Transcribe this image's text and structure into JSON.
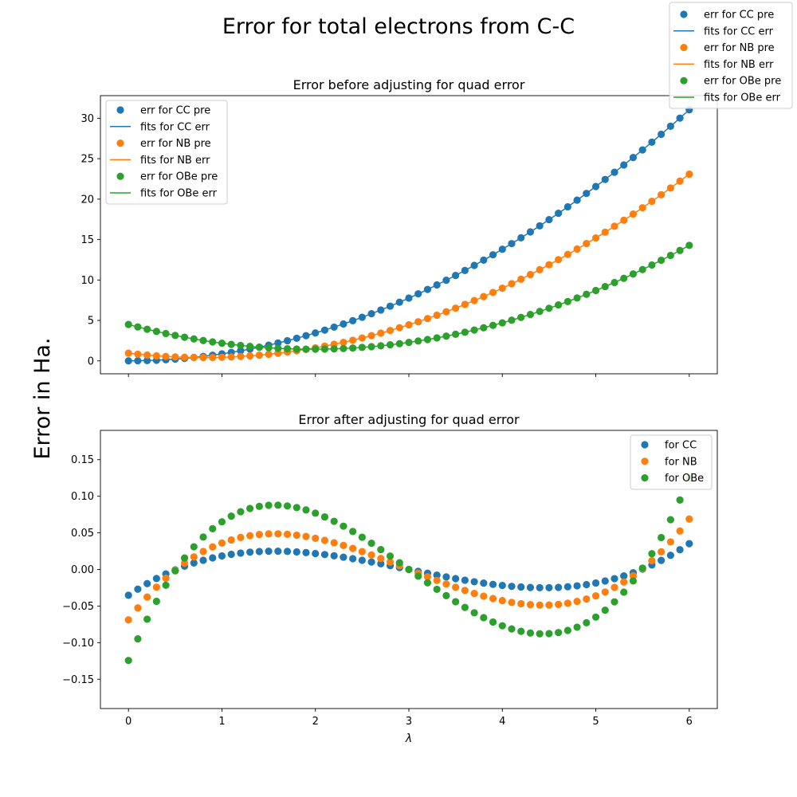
{
  "suptitle": "Error for total electrons from C-C",
  "ylabel_shared": "Error in Ha.",
  "colors": {
    "CC": "#1f77b4",
    "NB": "#ff7f0e",
    "OBe": "#2ca02c"
  },
  "figure_legend": [
    {
      "label": "err for CC pre",
      "kind": "marker",
      "color": "#1f77b4"
    },
    {
      "label": "fits for CC err",
      "kind": "line",
      "color": "#1f77b4"
    },
    {
      "label": "err for NB pre",
      "kind": "marker",
      "color": "#ff7f0e"
    },
    {
      "label": "fits for NB err",
      "kind": "line",
      "color": "#ff7f0e"
    },
    {
      "label": "err for OBe pre",
      "kind": "marker",
      "color": "#2ca02c"
    },
    {
      "label": "fits for OBe err",
      "kind": "line",
      "color": "#2ca02c"
    }
  ],
  "chart_data": [
    {
      "type": "scatter",
      "title": "Error before adjusting for quad error",
      "xlabel": "",
      "ylabel": "",
      "xlim": [
        -0.3,
        6.3
      ],
      "ylim": [
        -1.6,
        32.8
      ],
      "xticks": [
        0,
        1,
        2,
        3,
        4,
        5,
        6
      ],
      "yticks": [
        0,
        5,
        10,
        15,
        20,
        25,
        30
      ],
      "show_x_ticklabels": false,
      "x_start": 0,
      "x_step": 0.1,
      "n_points": 61,
      "legend": [
        {
          "label": "err for CC pre",
          "kind": "marker",
          "color": "#1f77b4"
        },
        {
          "label": "fits for CC err",
          "kind": "line",
          "color": "#1f77b4"
        },
        {
          "label": "err for NB pre",
          "kind": "marker",
          "color": "#ff7f0e"
        },
        {
          "label": "fits for NB err",
          "kind": "line",
          "color": "#ff7f0e"
        },
        {
          "label": "err for OBe pre",
          "kind": "marker",
          "color": "#2ca02c"
        },
        {
          "label": "fits for OBe err",
          "kind": "line",
          "color": "#2ca02c"
        }
      ],
      "series": [
        {
          "name": "CC",
          "color": "#1f77b4",
          "model": "quadratic",
          "a": 0.8625,
          "b": 0,
          "c": 0
        },
        {
          "name": "NB",
          "color": "#ff7f0e",
          "model": "quadratic",
          "a": 0.84,
          "b": -1.35,
          "c": 0.95
        },
        {
          "name": "OBe",
          "color": "#2ca02c",
          "model": "quadratic",
          "a": 0.79,
          "b": -3.11,
          "c": 4.5
        }
      ]
    },
    {
      "type": "scatter",
      "title": "Error after adjusting for quad error",
      "xlabel": "λ",
      "ylabel": "",
      "xlim": [
        -0.3,
        6.3
      ],
      "ylim": [
        -0.19,
        0.19
      ],
      "xticks": [
        0,
        1,
        2,
        3,
        4,
        5,
        6
      ],
      "yticks": [
        -0.15,
        -0.1,
        -0.05,
        0.0,
        0.05,
        0.1,
        0.15
      ],
      "ytick_labels": [
        "−0.15",
        "−0.10",
        "−0.05",
        "0.00",
        "0.05",
        "0.10",
        "0.15"
      ],
      "show_x_ticklabels": true,
      "x_start": 0,
      "x_step": 0.1,
      "n_points": 61,
      "legend": [
        {
          "label": "for CC",
          "kind": "marker",
          "color": "#1f77b4"
        },
        {
          "label": "for NB",
          "kind": "marker",
          "color": "#ff7f0e"
        },
        {
          "label": "for OBe",
          "kind": "marker",
          "color": "#2ca02c"
        }
      ],
      "series": [
        {
          "name": "for CC",
          "color": "#1f77b4",
          "model": "cubic_residual",
          "scale": 0.0042,
          "offset": 0.0
        },
        {
          "name": "for NB",
          "color": "#ff7f0e",
          "model": "cubic_residual",
          "scale": 0.0082,
          "offset": 0.0
        },
        {
          "name": "for OBe",
          "color": "#2ca02c",
          "model": "cubic_residual",
          "scale": 0.0148,
          "offset": 0.0
        }
      ]
    }
  ]
}
